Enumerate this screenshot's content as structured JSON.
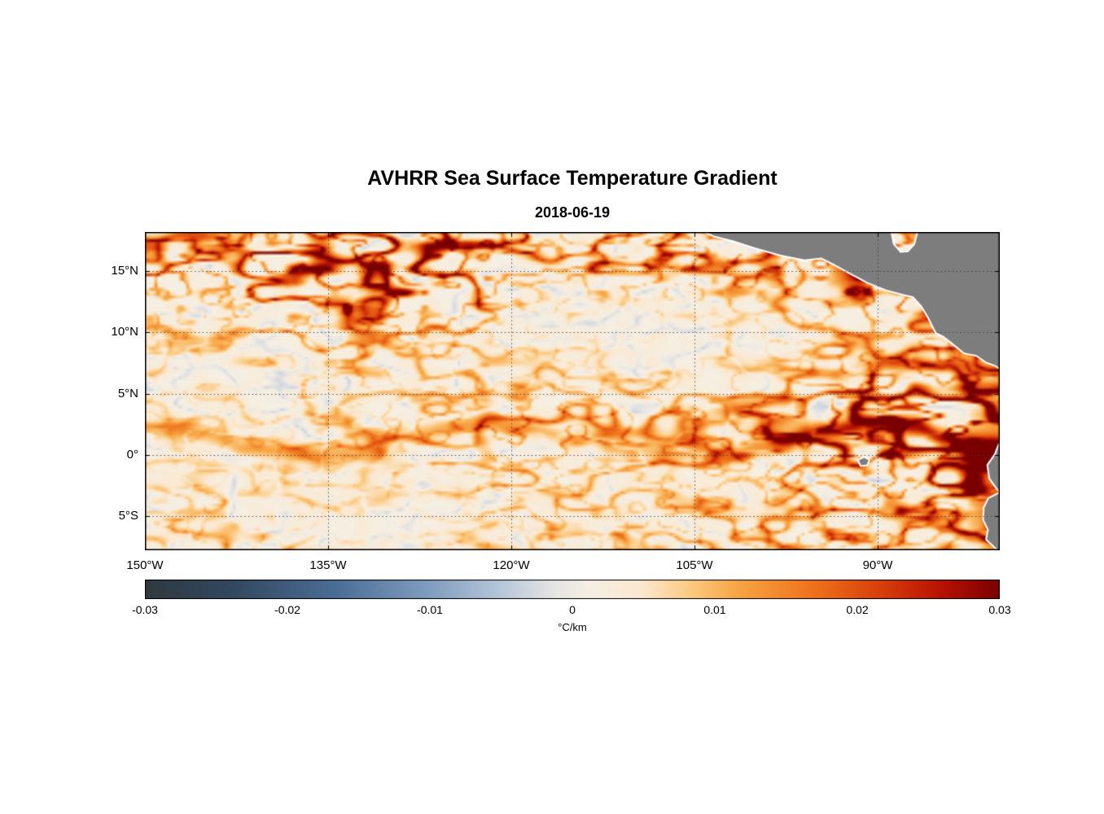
{
  "page": {
    "background": "#ffffff"
  },
  "chart_data": {
    "type": "heatmap",
    "title": "AVHRR Sea Surface Temperature Gradient",
    "subtitle": "2018-06-19",
    "xlabel": "",
    "ylabel": "",
    "xlim": [
      -150,
      -80
    ],
    "ylim": [
      -7.8,
      18.2
    ],
    "xticks": [
      {
        "value": -150,
        "label": "150°W"
      },
      {
        "value": -135,
        "label": "135°W"
      },
      {
        "value": -120,
        "label": "120°W"
      },
      {
        "value": -105,
        "label": "105°W"
      },
      {
        "value": -90,
        "label": "90°W"
      }
    ],
    "yticks": [
      {
        "value": 15,
        "label": "15°N"
      },
      {
        "value": 10,
        "label": "10°N"
      },
      {
        "value": 5,
        "label": "5°N"
      },
      {
        "value": 0,
        "label": "0°"
      },
      {
        "value": -5,
        "label": "5°S"
      }
    ],
    "grid": {
      "show": true,
      "style": "dotted",
      "color": "#3c3c52"
    },
    "frame_color": "#000000",
    "colorbar": {
      "orientation": "horizontal",
      "min": -0.03,
      "max": 0.03,
      "label": "°C/km",
      "ticks": [
        {
          "value": -0.03,
          "label": "-0.03"
        },
        {
          "value": -0.02,
          "label": "-0.02"
        },
        {
          "value": -0.01,
          "label": "-0.01"
        },
        {
          "value": 0,
          "label": "0"
        },
        {
          "value": 0.01,
          "label": "0.01"
        },
        {
          "value": 0.02,
          "label": "0.02"
        },
        {
          "value": 0.03,
          "label": "0.03"
        }
      ],
      "stops": [
        [
          0.0,
          "#30393f"
        ],
        [
          0.1,
          "#32485e"
        ],
        [
          0.22,
          "#4a6c94"
        ],
        [
          0.33,
          "#7e9cbe"
        ],
        [
          0.42,
          "#b9c8da"
        ],
        [
          0.48,
          "#e7e5e3"
        ],
        [
          0.52,
          "#f5efe3"
        ],
        [
          0.58,
          "#fbe8cf"
        ],
        [
          0.64,
          "#fbc97f"
        ],
        [
          0.7,
          "#f7a140"
        ],
        [
          0.78,
          "#ee731c"
        ],
        [
          0.86,
          "#d8400a"
        ],
        [
          0.93,
          "#b81303"
        ],
        [
          1.0,
          "#7a0000"
        ]
      ]
    },
    "land": {
      "fill": "#7d7d7d",
      "outline": "#ffffff",
      "outline_width": 4,
      "polygons": {
        "central_america": [
          [
            -104.7,
            18.5
          ],
          [
            -103.4,
            17.9
          ],
          [
            -101.8,
            17.5
          ],
          [
            -100.1,
            16.95
          ],
          [
            -98.0,
            16.35
          ],
          [
            -96.0,
            15.95
          ],
          [
            -94.6,
            16.1
          ],
          [
            -93.6,
            15.6
          ],
          [
            -92.3,
            14.9
          ],
          [
            -90.8,
            14.1
          ],
          [
            -89.3,
            13.5
          ],
          [
            -88.0,
            13.15
          ],
          [
            -87.1,
            12.95
          ],
          [
            -86.4,
            12.2
          ],
          [
            -85.8,
            11.2
          ],
          [
            -85.2,
            10.0
          ],
          [
            -84.6,
            9.7
          ],
          [
            -83.7,
            9.0
          ],
          [
            -82.9,
            8.35
          ],
          [
            -81.9,
            8.15
          ],
          [
            -81.1,
            7.6
          ],
          [
            -80.3,
            7.3
          ],
          [
            -79.6,
            6.8
          ],
          [
            -79.6,
            18.5
          ],
          [
            -86.6,
            18.5
          ],
          [
            -86.95,
            17.15
          ],
          [
            -87.5,
            16.55
          ],
          [
            -88.15,
            16.5
          ],
          [
            -88.75,
            17.2
          ],
          [
            -89.0,
            18.5
          ]
        ],
        "south_america": [
          [
            -79.3,
            1.8
          ],
          [
            -80.0,
            0.9
          ],
          [
            -80.35,
            0.0
          ],
          [
            -80.95,
            -0.85
          ],
          [
            -80.8,
            -1.9
          ],
          [
            -80.2,
            -2.75
          ],
          [
            -79.9,
            -3.1
          ],
          [
            -80.9,
            -3.6
          ],
          [
            -81.25,
            -4.35
          ],
          [
            -81.3,
            -5.3
          ],
          [
            -80.9,
            -6.1
          ],
          [
            -81.05,
            -6.9
          ],
          [
            -80.3,
            -7.6
          ],
          [
            -79.8,
            -8.3
          ],
          [
            -79.3,
            -8.3
          ]
        ],
        "galapagos": [
          [
            -91.55,
            -0.45
          ],
          [
            -91.1,
            -0.25
          ],
          [
            -90.75,
            -0.45
          ],
          [
            -90.9,
            -0.8
          ],
          [
            -91.35,
            -0.85
          ]
        ]
      }
    },
    "field": {
      "seed": 7,
      "description": "Synthetic filamentary SST-gradient-magnitude field approximating the AVHRR pattern: cream background near +0.002 °C/km, orange/red frontal filaments up to 0.03 °C/km concentrated at 12-18N, along the wavy equatorial front (strongest east of 105W near the Galapagos and the Ecuador/Peru coast), and faint slightly negative gray smudges elsewhere.",
      "background_value": 0.002,
      "filament_value_range": [
        0.008,
        0.03
      ]
    }
  }
}
